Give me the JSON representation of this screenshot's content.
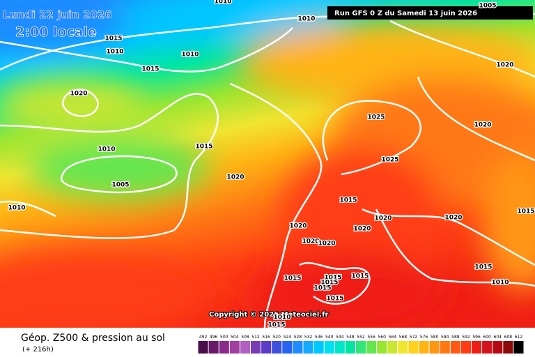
{
  "header": {
    "date": "Lundi 22 juin 2026",
    "time": "2:00 locale",
    "run": "Run GFS 0 Z du Samedi 13 juin 2026"
  },
  "copyright": "Copyright © 2026 Meteociel.fr",
  "footer": {
    "title": "Géop. Z500 & pression au sol",
    "subtitle": "(+ 216h)"
  },
  "isobar_labels": [
    1010,
    1010,
    1005,
    1015,
    1010,
    1010,
    1015,
    1020,
    1020,
    1025,
    1020,
    1015,
    1010,
    1025,
    1020,
    1005,
    1015,
    1010,
    1015,
    1020,
    1020,
    1020,
    1020,
    1020,
    1020,
    1015,
    1015,
    1015,
    1015,
    1015,
    1010,
    1015,
    1010,
    1015,
    1015
  ],
  "legend": {
    "values": [
      492,
      496,
      500,
      504,
      508,
      512,
      516,
      520,
      524,
      528,
      532,
      536,
      540,
      544,
      548,
      552,
      556,
      560,
      564,
      568,
      572,
      576,
      580,
      584,
      588,
      592,
      596,
      600,
      604,
      608,
      612
    ],
    "colors": [
      "#4b0f4b",
      "#6a1a6a",
      "#8a2a8a",
      "#a040a0",
      "#b060c0",
      "#7a3cb4",
      "#5a3cc8",
      "#3c50dc",
      "#2864f0",
      "#1e8cff",
      "#14aaff",
      "#00c8ff",
      "#00e0f0",
      "#00e6c8",
      "#00e6a0",
      "#32e678",
      "#64e650",
      "#96e632",
      "#c8e632",
      "#f0e632",
      "#ffd21e",
      "#ffb414",
      "#ff9614",
      "#ff7814",
      "#ff5a14",
      "#ff3c14",
      "#f01e14",
      "#d2141e",
      "#b40a14",
      "#8c0a0a",
      "#000000"
    ]
  }
}
